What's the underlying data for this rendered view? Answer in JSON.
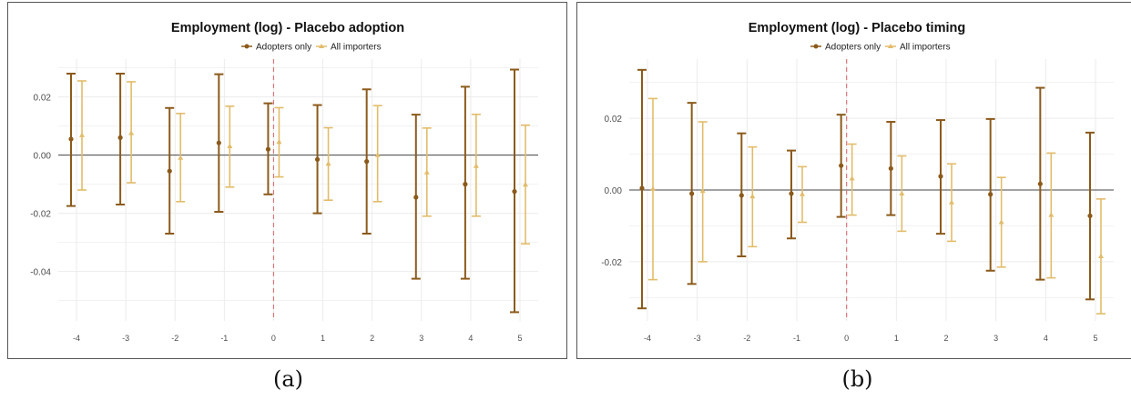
{
  "colors": {
    "adopters": "#8B5A1B",
    "importers": "#E2BC6A",
    "zero_line": "#444444",
    "event_line": "#D9777A",
    "grid": "#EBEBEB"
  },
  "charts": [
    {
      "caption": "(a)",
      "chart_data": {
        "type": "errorbar",
        "title": "Employment (log) - Placebo adoption",
        "xlabel": "",
        "ylabel": "",
        "categories": [
          "-4",
          "-3",
          "-2",
          "-1",
          "0",
          "1",
          "2",
          "3",
          "4",
          "5"
        ],
        "yticks": [
          "0.02",
          "0.00",
          "-0.02",
          "-0.04"
        ],
        "ylim": [
          -0.057,
          0.033
        ],
        "event_at": "0",
        "legend_position": "top",
        "series": [
          {
            "name": "Adopters only",
            "marker": "circle",
            "estimate": [
              0.0055,
              0.006,
              -0.0055,
              0.0042,
              0.002,
              -0.0015,
              -0.0022,
              -0.0145,
              -0.01,
              -0.0125
            ],
            "lower": [
              -0.0175,
              -0.017,
              -0.027,
              -0.0195,
              -0.0135,
              -0.02,
              -0.027,
              -0.0425,
              -0.0425,
              -0.054
            ],
            "upper": [
              0.028,
              0.028,
              0.0162,
              0.0278,
              0.0178,
              0.0172,
              0.0226,
              0.0139,
              0.0235,
              0.0294
            ]
          },
          {
            "name": "All importers",
            "marker": "triangle",
            "estimate": [
              0.0068,
              0.0075,
              -0.001,
              0.003,
              0.0045,
              -0.003,
              0.0,
              -0.006,
              -0.0038,
              -0.0102
            ],
            "lower": [
              -0.012,
              -0.0095,
              -0.016,
              -0.011,
              -0.0075,
              -0.0155,
              -0.016,
              -0.021,
              -0.021,
              -0.0305
            ],
            "upper": [
              0.0255,
              0.0252,
              0.0143,
              0.0168,
              0.0163,
              0.0094,
              0.017,
              0.0093,
              0.014,
              0.0103
            ]
          }
        ]
      }
    },
    {
      "caption": "(b)",
      "chart_data": {
        "type": "errorbar",
        "title": "Employment (log) - Placebo timing",
        "xlabel": "",
        "ylabel": "",
        "categories": [
          "-4",
          "-3",
          "-2",
          "-1",
          "0",
          "1",
          "2",
          "3",
          "4",
          "5"
        ],
        "yticks": [
          "0.02",
          "0.00",
          "-0.02"
        ],
        "ylim": [
          -0.0365,
          0.0365
        ],
        "event_at": "0",
        "legend_position": "top",
        "series": [
          {
            "name": "Adopters only",
            "marker": "circle",
            "estimate": [
              0.0005,
              -0.001,
              -0.0015,
              -0.001,
              0.0068,
              0.006,
              0.0038,
              -0.0012,
              0.0017,
              -0.0072
            ],
            "lower": [
              -0.033,
              -0.0262,
              -0.0185,
              -0.0135,
              -0.0075,
              -0.007,
              -0.0122,
              -0.0225,
              -0.025,
              -0.0305
            ],
            "upper": [
              0.0335,
              0.0243,
              0.0158,
              0.011,
              0.021,
              0.019,
              0.0195,
              0.0198,
              0.0285,
              0.016
            ]
          },
          {
            "name": "All importers",
            "marker": "triangle",
            "estimate": [
              0.0003,
              -0.0003,
              -0.0018,
              -0.0012,
              0.0032,
              -0.001,
              -0.0035,
              -0.009,
              -0.007,
              -0.0185
            ],
            "lower": [
              -0.025,
              -0.02,
              -0.0158,
              -0.009,
              -0.007,
              -0.0115,
              -0.0143,
              -0.0215,
              -0.0245,
              -0.0345
            ],
            "upper": [
              0.0255,
              0.019,
              0.012,
              0.0065,
              0.0128,
              0.0095,
              0.0073,
              0.0035,
              0.0103,
              -0.0025
            ]
          }
        ]
      }
    }
  ]
}
